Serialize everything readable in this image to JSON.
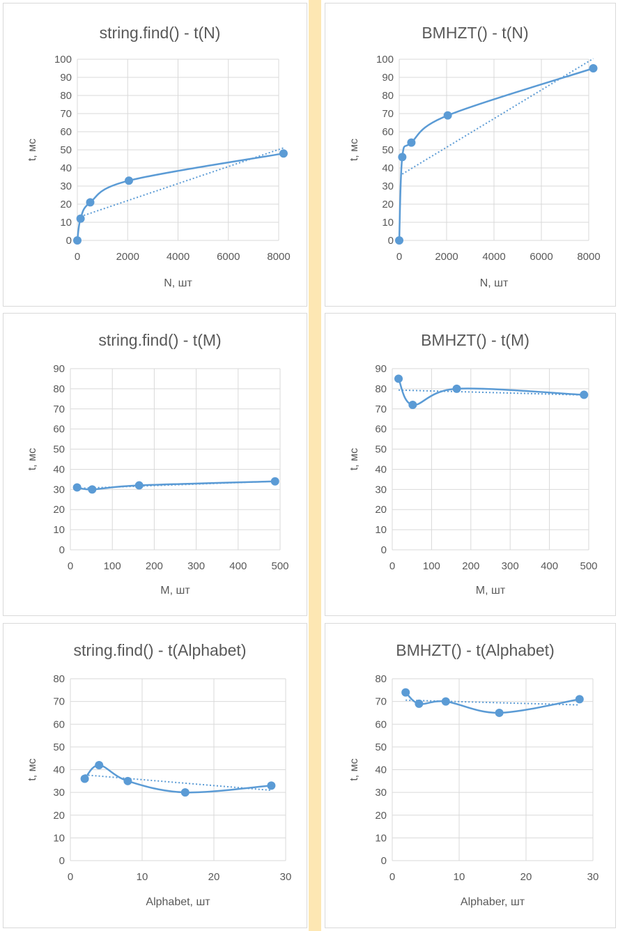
{
  "chart_data": [
    {
      "type": "scatter",
      "title": "string.find() - t(N)",
      "xlabel": "N, шт",
      "ylabel": "t, мс",
      "xlim": [
        0,
        8000
      ],
      "ylim": [
        0,
        100
      ],
      "xticks": [
        "0",
        "2000",
        "4000",
        "6000",
        "8000"
      ],
      "yticks": [
        "0",
        "10",
        "20",
        "30",
        "40",
        "50",
        "60",
        "70",
        "80",
        "90",
        "100"
      ],
      "grid": true,
      "trendline": "linear",
      "series": [
        {
          "x": [
            0,
            128,
            512,
            2048,
            8192
          ],
          "y": [
            0,
            12,
            21,
            33,
            48
          ]
        }
      ]
    },
    {
      "type": "scatter",
      "title": "BMHZT() - t(N)",
      "xlabel": "N, шт",
      "ylabel": "t, мс",
      "xlim": [
        0,
        8000
      ],
      "ylim": [
        0,
        100
      ],
      "xticks": [
        "0",
        "2000",
        "4000",
        "6000",
        "8000"
      ],
      "yticks": [
        "0",
        "10",
        "20",
        "30",
        "40",
        "50",
        "60",
        "70",
        "80",
        "90",
        "100"
      ],
      "grid": true,
      "trendline": "linear",
      "series": [
        {
          "x": [
            0,
            128,
            512,
            2048,
            8192
          ],
          "y": [
            0,
            46,
            54,
            69,
            95
          ]
        }
      ]
    },
    {
      "type": "scatter",
      "title": "string.find() - t(M)",
      "xlabel": "M, шт",
      "ylabel": "t, мс",
      "xlim": [
        0,
        500
      ],
      "ylim": [
        0,
        90
      ],
      "xticks": [
        "0",
        "100",
        "200",
        "300",
        "400",
        "500"
      ],
      "yticks": [
        "0",
        "10",
        "20",
        "30",
        "40",
        "50",
        "60",
        "70",
        "80",
        "90"
      ],
      "grid": true,
      "trendline": "linear",
      "series": [
        {
          "x": [
            16,
            52,
            164,
            488
          ],
          "y": [
            31,
            30,
            32,
            34
          ]
        }
      ]
    },
    {
      "type": "scatter",
      "title": "BMHZT() - t(M)",
      "xlabel": "M, шт",
      "ylabel": "t, мс",
      "xlim": [
        0,
        500
      ],
      "ylim": [
        0,
        90
      ],
      "xticks": [
        "0",
        "100",
        "200",
        "300",
        "400",
        "500"
      ],
      "yticks": [
        "0",
        "10",
        "20",
        "30",
        "40",
        "50",
        "60",
        "70",
        "80",
        "90"
      ],
      "grid": true,
      "trendline": "linear",
      "series": [
        {
          "x": [
            16,
            52,
            164,
            488
          ],
          "y": [
            85,
            72,
            80,
            77
          ]
        }
      ]
    },
    {
      "type": "scatter",
      "title": "string.find() - t(Alphabet)",
      "xlabel": "Alphabet, шт",
      "ylabel": "t, мс",
      "xlim": [
        0,
        30
      ],
      "ylim": [
        0,
        80
      ],
      "xticks": [
        "0",
        "10",
        "20",
        "30"
      ],
      "yticks": [
        "0",
        "10",
        "20",
        "30",
        "40",
        "50",
        "60",
        "70",
        "80"
      ],
      "grid": true,
      "trendline": "linear",
      "series": [
        {
          "x": [
            2,
            4,
            8,
            16,
            28
          ],
          "y": [
            36,
            42,
            35,
            30,
            33
          ]
        }
      ]
    },
    {
      "type": "scatter",
      "title": "BMHZT() - t(Alphabet)",
      "xlabel": "Alphaber, шт",
      "ylabel": "t, мс",
      "xlim": [
        0,
        30
      ],
      "ylim": [
        0,
        80
      ],
      "xticks": [
        "0",
        "10",
        "20",
        "30"
      ],
      "yticks": [
        "0",
        "10",
        "20",
        "30",
        "40",
        "50",
        "60",
        "70",
        "80"
      ],
      "grid": true,
      "trendline": "linear",
      "series": [
        {
          "x": [
            2,
            4,
            8,
            16,
            28
          ],
          "y": [
            74,
            69,
            70,
            65,
            71
          ]
        }
      ]
    }
  ],
  "colors": {
    "series": "#5b9bd5",
    "grid": "#d9d9d9",
    "text": "#595959",
    "divider": "#fde7b3"
  }
}
